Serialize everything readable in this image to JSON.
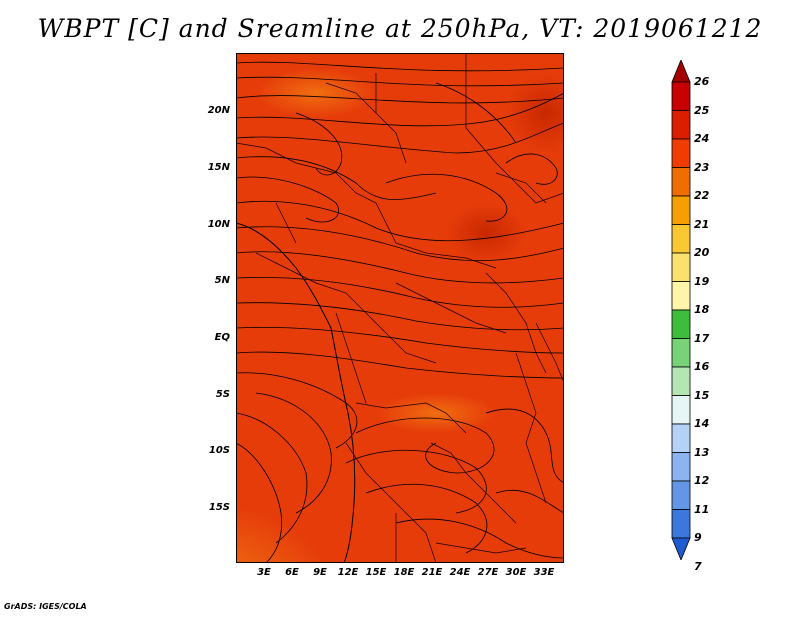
{
  "title": "WBPT [C] and Sreamline at 250hPa, VT: 2019061212",
  "credit": "GrADS: IGES/COLA",
  "map": {
    "lat_labels": [
      "20N",
      "15N",
      "10N",
      "5N",
      "EQ",
      "5S",
      "10S",
      "15S"
    ],
    "lon_labels": [
      "3E",
      "6E",
      "9E",
      "12E",
      "15E",
      "18E",
      "21E",
      "24E",
      "27E",
      "30E",
      "33E"
    ]
  },
  "colorbar": {
    "levels": [
      "26",
      "25",
      "24",
      "23",
      "22",
      "21",
      "20",
      "19",
      "18",
      "17",
      "16",
      "15",
      "14",
      "13",
      "12",
      "11",
      "9",
      "7"
    ],
    "colors": [
      "#a50000",
      "#c80000",
      "#dc1e00",
      "#f03c00",
      "#f06e00",
      "#f5a000",
      "#fac832",
      "#fae16e",
      "#fff5aa",
      "#3cbe3c",
      "#78d278",
      "#b4e6b4",
      "#e6f5f5",
      "#b4d2f5",
      "#8cb4f0",
      "#6496e6",
      "#3c78dc",
      "#1e5ad2"
    ]
  }
}
